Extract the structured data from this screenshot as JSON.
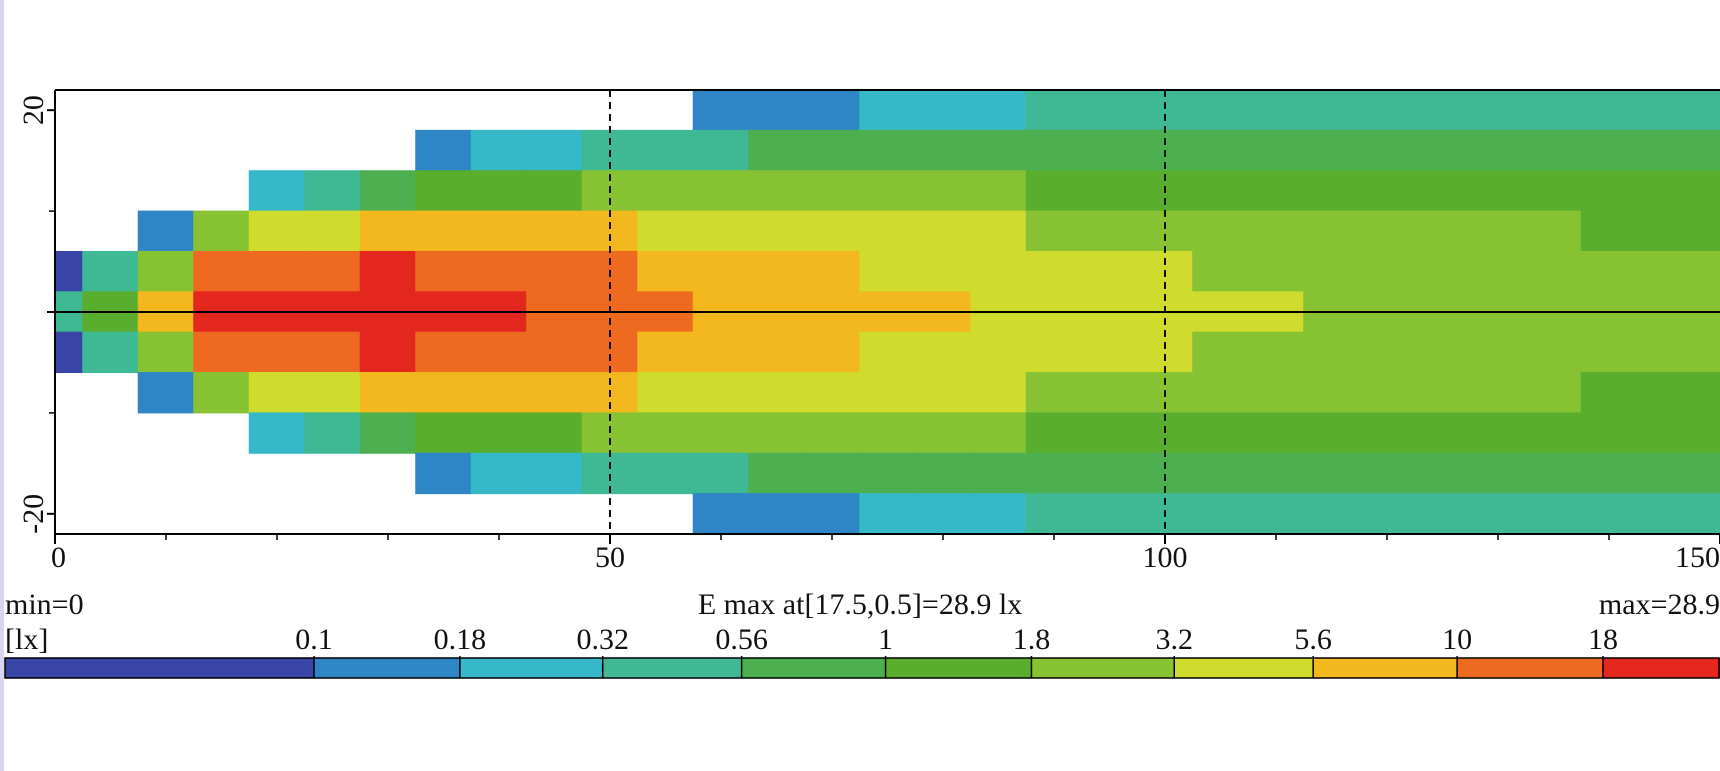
{
  "chart_data": {
    "type": "heatmap",
    "title": "E max at[17.5,0.5]=28.9 lx",
    "min_label": "min=0",
    "max_label": "max=28.9",
    "unit_label": "[lx]",
    "xlim": [
      0,
      150
    ],
    "ylim": [
      -22,
      22
    ],
    "xticks": [
      0,
      50,
      100,
      150
    ],
    "x_minor_ticks": [
      10,
      20,
      30,
      40,
      60,
      70,
      80,
      90,
      110,
      120,
      130,
      140
    ],
    "yticks": [
      20,
      -20
    ],
    "y_minor_ticks": [
      10,
      0,
      -10
    ],
    "grid": true,
    "x": [
      0,
      5,
      10,
      15,
      20,
      25,
      30,
      35,
      40,
      45,
      50,
      55,
      60,
      65,
      70,
      75,
      80,
      85,
      90,
      95,
      100,
      105,
      110,
      115,
      120,
      125,
      130,
      135,
      140,
      145,
      150
    ],
    "y": [
      20,
      16,
      12,
      8,
      4,
      0,
      -4,
      -8,
      -12,
      -16,
      -20
    ],
    "z": [
      [
        null,
        null,
        null,
        null,
        null,
        null,
        null,
        null,
        null,
        null,
        null,
        null,
        0.11,
        0.14,
        0.17,
        0.22,
        0.27,
        0.31,
        0.32,
        0.32,
        0.34,
        0.33,
        0.36,
        0.37,
        0.36,
        0.36,
        0.37,
        0.38,
        0.39,
        0.37,
        0.36
      ],
      [
        null,
        null,
        null,
        null,
        null,
        null,
        null,
        0.13,
        0.2,
        0.29,
        0.41,
        0.46,
        0.52,
        0.58,
        0.64,
        0.72,
        0.8,
        0.85,
        0.83,
        0.8,
        0.8,
        0.76,
        0.79,
        0.79,
        0.76,
        0.73,
        0.74,
        0.74,
        0.74,
        0.7,
        0.67
      ],
      [
        null,
        null,
        null,
        null,
        0.24,
        0.49,
        0.86,
        1.3,
        1.5,
        1.7,
        1.9,
        1.9,
        1.8,
        1.8,
        1.8,
        1.8,
        1.9,
        1.8,
        1.7,
        1.6,
        1.5,
        1.4,
        1.5,
        1.4,
        1.3,
        1.3,
        1.3,
        1.2,
        1.2,
        1.2,
        1.1
      ],
      [
        null,
        null,
        0.11,
        1.8,
        3.4,
        4.6,
        5.7,
        6.5,
        6.1,
        5.9,
        5.7,
        5,
        4.4,
        4,
        3.6,
        3.5,
        3.5,
        3.2,
        3,
        2.7,
        2.5,
        2.3,
        2.2,
        2.1,
        2,
        1.9,
        1.8,
        1.8,
        1.7,
        1.7,
        1.6
      ],
      [
        0.08,
        0.4,
        2.2,
        13,
        16,
        17,
        18,
        17,
        14,
        12,
        11,
        9,
        7.5,
        6.4,
        5.6,
        5.3,
        5,
        4.5,
        4.1,
        3.6,
        3.3,
        3,
        2.9,
        2.8,
        2.6,
        2.4,
        2.3,
        2.2,
        2.1,
        2,
        2
      ],
      [
        0.5,
        1.5,
        6,
        24,
        28,
        27,
        26,
        24,
        19,
        16,
        14,
        11,
        9,
        7.5,
        6.5,
        6,
        5.6,
        5,
        4.5,
        4,
        3.6,
        3.3,
        3.2,
        3,
        2.8,
        2.6,
        2.5,
        2.4,
        2.3,
        2.2,
        2.1
      ],
      [
        0.08,
        0.4,
        2.2,
        13,
        16,
        17,
        18,
        17,
        14,
        12,
        11,
        9,
        7.5,
        6.4,
        5.6,
        5.3,
        5,
        4.5,
        4.1,
        3.6,
        3.3,
        3,
        2.9,
        2.8,
        2.6,
        2.4,
        2.3,
        2.2,
        2.1,
        2,
        2
      ],
      [
        null,
        null,
        0.11,
        1.8,
        3.4,
        4.6,
        5.7,
        6.5,
        6.1,
        5.9,
        5.7,
        5,
        4.4,
        4,
        3.6,
        3.5,
        3.5,
        3.2,
        3,
        2.7,
        2.5,
        2.3,
        2.2,
        2.1,
        2,
        1.9,
        1.8,
        1.8,
        1.7,
        1.7,
        1.6
      ],
      [
        null,
        null,
        null,
        null,
        0.24,
        0.49,
        0.86,
        1.3,
        1.5,
        1.7,
        1.9,
        1.9,
        1.8,
        1.8,
        1.8,
        1.8,
        1.9,
        1.8,
        1.7,
        1.6,
        1.5,
        1.4,
        1.5,
        1.4,
        1.3,
        1.3,
        1.3,
        1.2,
        1.2,
        1.2,
        1.1
      ],
      [
        null,
        null,
        null,
        null,
        null,
        null,
        null,
        0.13,
        0.2,
        0.29,
        0.41,
        0.46,
        0.52,
        0.58,
        0.64,
        0.72,
        0.8,
        0.85,
        0.83,
        0.8,
        0.8,
        0.76,
        0.79,
        0.79,
        0.76,
        0.73,
        0.74,
        0.74,
        0.74,
        0.7,
        0.67
      ],
      [
        null,
        null,
        null,
        null,
        null,
        null,
        null,
        null,
        null,
        null,
        null,
        null,
        0.11,
        0.14,
        0.17,
        0.22,
        0.27,
        0.31,
        0.32,
        0.32,
        0.34,
        0.33,
        0.36,
        0.37,
        0.36,
        0.36,
        0.37,
        0.38,
        0.39,
        0.37,
        0.36
      ]
    ],
    "colorbar": {
      "ticks": [
        0.1,
        0.18,
        0.32,
        0.56,
        1,
        1.8,
        3.2,
        5.6,
        10,
        18
      ],
      "colors": [
        "#3a45a8",
        "#2f86c6",
        "#35b8c8",
        "#3fb894",
        "#4cb050",
        "#5aae2e",
        "#86c232",
        "#cfdc2e",
        "#f2b81e",
        "#ee6a20",
        "#e3261e"
      ]
    }
  }
}
